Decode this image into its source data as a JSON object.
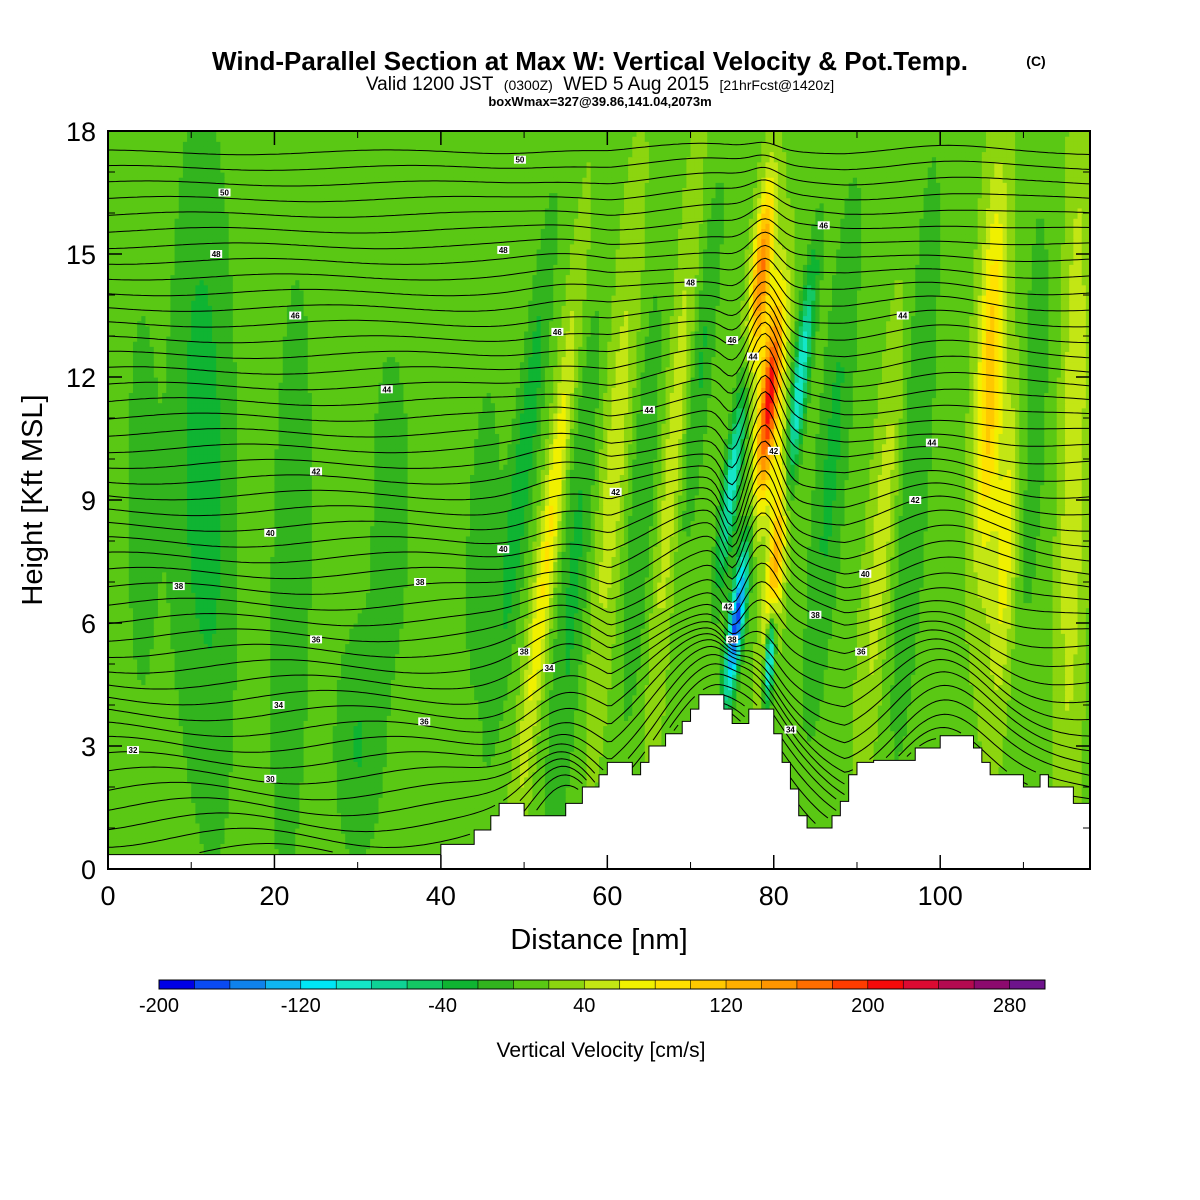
{
  "chart_data": {
    "type": "heatmap",
    "title": "Wind-Parallel Section at Max W: Vertical Velocity & Pot.Temp.",
    "title_mark": "(C)",
    "subtitle": {
      "prefix": "Valid 1200 JST",
      "utc": "(0300Z)",
      "date": "WED 5 Aug 2015",
      "forecast": "[21hrFcst@1420z]"
    },
    "subtitle2": "boxWmax=327@39.86,141.04,2073m",
    "xlabel": "Distance [nm]",
    "ylabel": "Height [Kft MSL]",
    "xlim": [
      0,
      118
    ],
    "ylim": [
      0,
      18
    ],
    "x_ticks": [
      "0",
      "20",
      "40",
      "60",
      "80",
      "100"
    ],
    "y_ticks": [
      "0",
      "3",
      "6",
      "9",
      "12",
      "15",
      "18"
    ],
    "colorbar": {
      "label": "Vertical Velocity [cm/s]",
      "min": -200,
      "max": 300,
      "step": 20,
      "tick_labels": [
        "-200",
        "-120",
        "-40",
        "40",
        "120",
        "200",
        "280"
      ],
      "colors": [
        "#0000e6",
        "#0a4af2",
        "#0f82ec",
        "#0fb6f0",
        "#00e6f5",
        "#14e6c8",
        "#0fd296",
        "#14c864",
        "#0fb432",
        "#32b41e",
        "#5ac814",
        "#8cd50f",
        "#c3e614",
        "#f0f000",
        "#ffe100",
        "#ffc800",
        "#ffaf00",
        "#ff9600",
        "#ff6e00",
        "#ff3c00",
        "#f50a0a",
        "#dc0a32",
        "#b40a50",
        "#8c0a6e",
        "#6e148c"
      ]
    },
    "background_w": 15,
    "features": [
      {
        "x": 4,
        "z": 9,
        "w": -22,
        "sx": 2.5,
        "sz": 7,
        "tilt": 0
      },
      {
        "x": 10,
        "z": 11,
        "w": -30,
        "sx": 3,
        "sz": 8,
        "tilt": 0.05
      },
      {
        "x": 13,
        "z": 8,
        "w": -30,
        "sx": 3,
        "sz": 9,
        "tilt": 0
      },
      {
        "x": 22,
        "z": 7,
        "w": -35,
        "sx": 2.5,
        "sz": 8,
        "tilt": 0.1
      },
      {
        "x": 30,
        "z": 3,
        "w": -35,
        "sx": 3,
        "sz": 3,
        "tilt": 0
      },
      {
        "x": 34,
        "z": 9,
        "w": -25,
        "sx": 3,
        "sz": 5,
        "tilt": 0
      },
      {
        "x": 45,
        "z": 8,
        "w": -25,
        "sx": 2.5,
        "sz": 5,
        "tilt": 0.2
      },
      {
        "x": 50,
        "z": 10,
        "w": -50,
        "sx": 1.5,
        "sz": 6,
        "tilt": 0.55
      },
      {
        "x": 53,
        "z": 8,
        "w": 70,
        "sx": 1.2,
        "sz": 6,
        "tilt": 0.55
      },
      {
        "x": 56,
        "z": 7,
        "w": -40,
        "sx": 2,
        "sz": 7,
        "tilt": 0.4
      },
      {
        "x": 61,
        "z": 10,
        "w": 40,
        "sx": 2,
        "sz": 6,
        "tilt": 0.4
      },
      {
        "x": 64,
        "z": 9,
        "w": -35,
        "sx": 2,
        "sz": 6,
        "tilt": 0.3
      },
      {
        "x": 68,
        "z": 10,
        "w": 45,
        "sx": 1.5,
        "sz": 6,
        "tilt": 0.4
      },
      {
        "x": 71,
        "z": 12,
        "w": -40,
        "sx": 1.5,
        "sz": 5,
        "tilt": 0.5
      },
      {
        "x": 75.5,
        "z": 6,
        "w": -190,
        "sx": 0.9,
        "sz": 2,
        "tilt": 0.6
      },
      {
        "x": 75,
        "z": 9.5,
        "w": -110,
        "sx": 1,
        "sz": 2.5,
        "tilt": 0.6
      },
      {
        "x": 78.5,
        "z": 14.5,
        "w": 150,
        "sx": 1.1,
        "sz": 2.2,
        "tilt": 0.45
      },
      {
        "x": 79.5,
        "z": 11.5,
        "w": 200,
        "sx": 1.2,
        "sz": 2.5,
        "tilt": 0.45
      },
      {
        "x": 80.5,
        "z": 8,
        "w": 170,
        "sx": 1,
        "sz": 3,
        "tilt": 0.45
      },
      {
        "x": 79.5,
        "z": 5.2,
        "w": -180,
        "sx": 0.6,
        "sz": 1.2,
        "tilt": 0.3
      },
      {
        "x": 82.5,
        "z": 11,
        "w": -140,
        "sx": 1,
        "sz": 3.5,
        "tilt": 0.6
      },
      {
        "x": 87,
        "z": 10,
        "w": -40,
        "sx": 2,
        "sz": 7,
        "tilt": 0.4
      },
      {
        "x": 93,
        "z": 8,
        "w": 40,
        "sx": 1.5,
        "sz": 5,
        "tilt": 0.4
      },
      {
        "x": 97,
        "z": 10,
        "w": -35,
        "sx": 2,
        "sz": 8,
        "tilt": 0.3
      },
      {
        "x": 106,
        "z": 12,
        "w": 100,
        "sx": 1.5,
        "sz": 4.5,
        "tilt": 0.2
      },
      {
        "x": 108,
        "z": 8,
        "w": 60,
        "sx": 1.5,
        "sz": 4,
        "tilt": 0.3
      },
      {
        "x": 111,
        "z": 11,
        "w": -30,
        "sx": 2,
        "sz": 6,
        "tilt": 0.2
      },
      {
        "x": 116,
        "z": 10,
        "w": 45,
        "sx": 1.5,
        "sz": 8,
        "tilt": 0.1
      }
    ],
    "terrain_steps": [
      [
        0,
        0.35
      ],
      [
        40,
        0.35
      ],
      [
        40,
        0.6
      ],
      [
        44,
        0.6
      ],
      [
        44,
        0.95
      ],
      [
        46,
        0.95
      ],
      [
        46,
        1.3
      ],
      [
        47,
        1.3
      ],
      [
        47,
        1.6
      ],
      [
        50,
        1.6
      ],
      [
        50,
        1.3
      ],
      [
        55,
        1.3
      ],
      [
        55,
        1.6
      ],
      [
        57,
        1.6
      ],
      [
        57,
        2.0
      ],
      [
        59,
        2.0
      ],
      [
        59,
        2.3
      ],
      [
        60,
        2.3
      ],
      [
        60,
        2.6
      ],
      [
        63,
        2.6
      ],
      [
        63,
        2.3
      ],
      [
        64,
        2.3
      ],
      [
        64,
        2.6
      ],
      [
        65,
        2.6
      ],
      [
        65,
        3.0
      ],
      [
        67,
        3.0
      ],
      [
        67,
        3.3
      ],
      [
        69,
        3.3
      ],
      [
        69,
        3.6
      ],
      [
        70,
        3.6
      ],
      [
        70,
        3.9
      ],
      [
        71,
        3.9
      ],
      [
        71,
        4.25
      ],
      [
        74,
        4.25
      ],
      [
        74,
        3.9
      ],
      [
        75,
        3.9
      ],
      [
        75,
        3.55
      ],
      [
        77,
        3.55
      ],
      [
        77,
        3.9
      ],
      [
        80,
        3.9
      ],
      [
        80,
        3.3
      ],
      [
        81,
        3.3
      ],
      [
        81,
        2.6
      ],
      [
        82,
        2.6
      ],
      [
        82,
        1.95
      ],
      [
        83,
        1.95
      ],
      [
        83,
        1.3
      ],
      [
        84,
        1.3
      ],
      [
        84,
        1.0
      ],
      [
        87,
        1.0
      ],
      [
        87,
        1.3
      ],
      [
        88,
        1.3
      ],
      [
        88,
        1.65
      ],
      [
        89,
        1.65
      ],
      [
        89,
        2.3
      ],
      [
        90,
        2.3
      ],
      [
        90,
        2.6
      ],
      [
        92,
        2.6
      ],
      [
        92,
        2.65
      ],
      [
        97,
        2.65
      ],
      [
        97,
        2.95
      ],
      [
        100,
        2.95
      ],
      [
        100,
        3.25
      ],
      [
        104,
        3.25
      ],
      [
        104,
        2.95
      ],
      [
        105,
        2.95
      ],
      [
        105,
        2.6
      ],
      [
        106,
        2.6
      ],
      [
        106,
        2.3
      ],
      [
        110,
        2.3
      ],
      [
        110,
        2.0
      ],
      [
        112,
        2.0
      ],
      [
        112,
        2.3
      ],
      [
        113,
        2.3
      ],
      [
        113,
        2.0
      ],
      [
        116,
        2.0
      ],
      [
        116,
        1.6
      ],
      [
        118,
        1.6
      ]
    ],
    "theta_contours": {
      "min": 29,
      "max": 52,
      "step": 0.5
    },
    "contour_labels": [
      {
        "text": "50",
        "x": 14,
        "z": 16.5
      },
      {
        "text": "48",
        "x": 13,
        "z": 15.0
      },
      {
        "text": "46",
        "x": 22.5,
        "z": 13.5
      },
      {
        "text": "44",
        "x": 33.5,
        "z": 11.7
      },
      {
        "text": "42",
        "x": 25,
        "z": 9.7
      },
      {
        "text": "40",
        "x": 19.5,
        "z": 8.2
      },
      {
        "text": "38",
        "x": 8.5,
        "z": 6.9
      },
      {
        "text": "38",
        "x": 37.5,
        "z": 7.0
      },
      {
        "text": "36",
        "x": 25,
        "z": 5.6
      },
      {
        "text": "34",
        "x": 20.5,
        "z": 4.0
      },
      {
        "text": "36",
        "x": 38,
        "z": 3.6
      },
      {
        "text": "32",
        "x": 3,
        "z": 2.9
      },
      {
        "text": "30",
        "x": 19.5,
        "z": 2.2
      },
      {
        "text": "50",
        "x": 49.5,
        "z": 17.3
      },
      {
        "text": "48",
        "x": 47.5,
        "z": 15.1
      },
      {
        "text": "46",
        "x": 54,
        "z": 13.1
      },
      {
        "text": "48",
        "x": 70,
        "z": 14.3
      },
      {
        "text": "44",
        "x": 65,
        "z": 11.2
      },
      {
        "text": "42",
        "x": 61,
        "z": 9.2
      },
      {
        "text": "40",
        "x": 47.5,
        "z": 7.8
      },
      {
        "text": "38",
        "x": 50,
        "z": 5.3
      },
      {
        "text": "34",
        "x": 53,
        "z": 4.9
      },
      {
        "text": "46",
        "x": 75,
        "z": 12.9
      },
      {
        "text": "44",
        "x": 77.5,
        "z": 12.5
      },
      {
        "text": "42",
        "x": 80,
        "z": 10.2
      },
      {
        "text": "42",
        "x": 74.5,
        "z": 6.4
      },
      {
        "text": "38",
        "x": 75,
        "z": 5.6
      },
      {
        "text": "46",
        "x": 86,
        "z": 15.7
      },
      {
        "text": "44",
        "x": 95.5,
        "z": 13.5
      },
      {
        "text": "44",
        "x": 99,
        "z": 10.4
      },
      {
        "text": "42",
        "x": 97,
        "z": 9.0
      },
      {
        "text": "40",
        "x": 91,
        "z": 7.2
      },
      {
        "text": "38",
        "x": 85,
        "z": 6.2
      },
      {
        "text": "36",
        "x": 90.5,
        "z": 5.3
      },
      {
        "text": "34",
        "x": 82,
        "z": 3.4
      }
    ]
  }
}
